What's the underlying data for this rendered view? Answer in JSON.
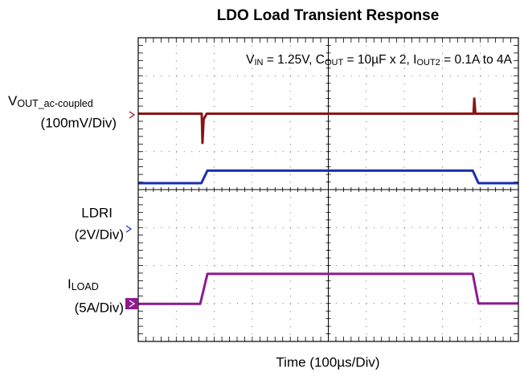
{
  "chart_data": {
    "type": "scope",
    "title": "LDO Load Transient Response",
    "annotation": [
      "V",
      "IN",
      " = 1.25V, C",
      "OUT",
      " = 10µF x 2, I",
      "OUT2",
      " = 0.1A to 4A"
    ],
    "x_label": "Time (100µs/Div)",
    "grid_divisions": [
      10,
      8
    ],
    "xlim": [
      0,
      10
    ],
    "ylim": [
      0,
      8
    ],
    "series": [
      {
        "name": "V",
        "name_sub": "OUT_ac-coupled",
        "scale": "(100mV/Div)",
        "color": "#8b1414",
        "x": [
          0,
          1.67,
          1.69,
          1.72,
          1.8,
          8.82,
          8.84,
          8.87,
          10
        ],
        "values": [
          6.0,
          6.0,
          5.23,
          5.85,
          6.0,
          6.0,
          6.4,
          6.0,
          6.0
        ]
      },
      {
        "name": "LDRI",
        "scale": "(2V/Div)",
        "color": "#1a2fb0",
        "x": [
          0,
          1.66,
          1.82,
          8.8,
          8.95,
          10
        ],
        "values": [
          4.17,
          4.17,
          4.5,
          4.5,
          4.17,
          4.17
        ]
      },
      {
        "name": "I",
        "name_sub": "LOAD",
        "scale": "(5A/Div)",
        "color": "#8e1a8e",
        "x": [
          0,
          1.63,
          1.82,
          8.8,
          8.95,
          10
        ],
        "values": [
          0.99,
          0.99,
          1.78,
          1.78,
          1.0,
          1.0
        ]
      }
    ]
  }
}
